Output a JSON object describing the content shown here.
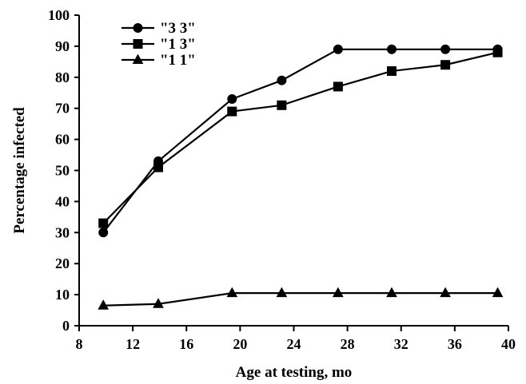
{
  "chart_data": {
    "type": "line",
    "title": "",
    "xlabel": "Age at testing, mo",
    "ylabel": "Percentage infected",
    "xlim": [
      8,
      40
    ],
    "ylim": [
      0,
      100
    ],
    "xticks": [
      8,
      12,
      16,
      20,
      24,
      28,
      32,
      36,
      40
    ],
    "yticks": [
      0,
      10,
      20,
      30,
      40,
      50,
      60,
      70,
      80,
      90,
      100
    ],
    "grid": false,
    "legend_position": "top-left",
    "series": [
      {
        "name": "\"3 3\"",
        "marker": "circle",
        "x": [
          9.8,
          13.9,
          19.4,
          23.1,
          27.3,
          31.3,
          35.3,
          39.2
        ],
        "y": [
          30,
          53,
          73,
          79,
          89,
          89,
          89,
          89
        ]
      },
      {
        "name": "\"1 3\"",
        "marker": "square",
        "x": [
          9.8,
          13.9,
          19.4,
          23.1,
          27.3,
          31.3,
          35.3,
          39.2
        ],
        "y": [
          33,
          51,
          69,
          71,
          77,
          82,
          84,
          88
        ]
      },
      {
        "name": "\"1 1\"",
        "marker": "triangle",
        "x": [
          9.8,
          13.9,
          19.4,
          23.1,
          27.3,
          31.3,
          35.3,
          39.2
        ],
        "y": [
          6.5,
          7,
          10.5,
          10.5,
          10.5,
          10.5,
          10.5,
          10.5
        ]
      }
    ]
  }
}
